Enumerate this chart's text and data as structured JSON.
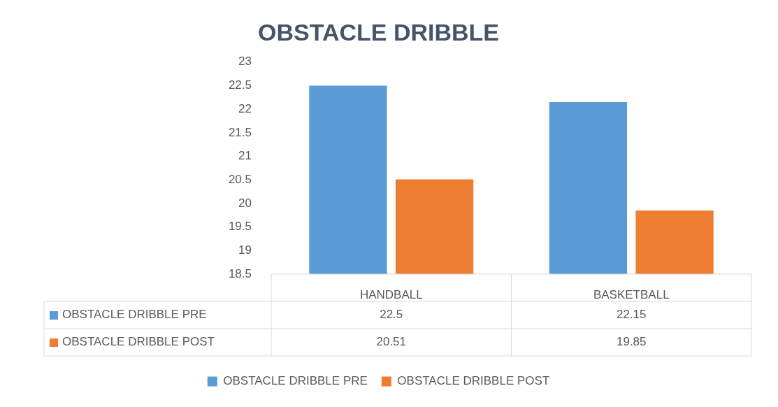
{
  "chart_data": {
    "type": "bar",
    "title": "OBSTACLE DRIBBLE",
    "categories": [
      "HANDBALL",
      "BASKETBALL"
    ],
    "series": [
      {
        "name": "OBSTACLE DRIBBLE PRE",
        "color": "#5b9bd5",
        "values": [
          22.5,
          22.15
        ]
      },
      {
        "name": "OBSTACLE DRIBBLE POST",
        "color": "#ed7d31",
        "values": [
          20.51,
          19.85
        ]
      }
    ],
    "ylim": [
      18.5,
      23
    ],
    "yticks": [
      18.5,
      19,
      19.5,
      20,
      20.5,
      21,
      21.5,
      22,
      22.5,
      23
    ],
    "data_labels": true,
    "legend": "bottom"
  }
}
